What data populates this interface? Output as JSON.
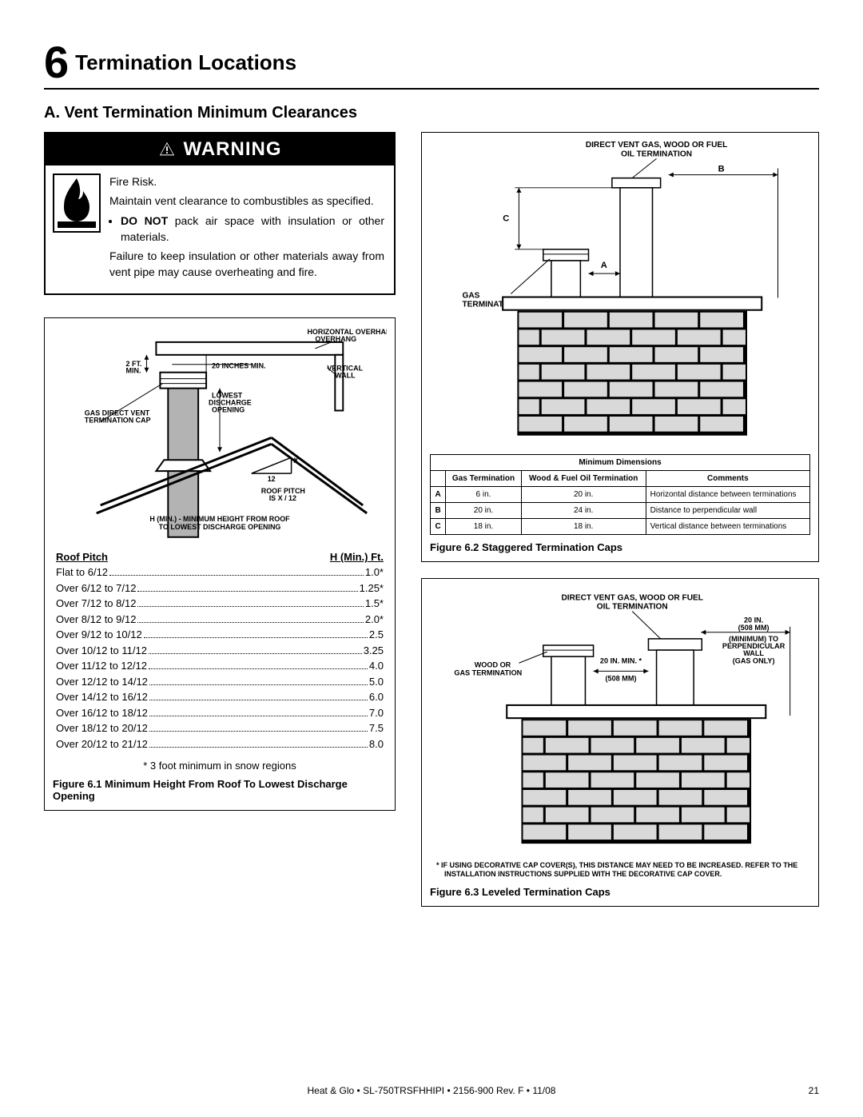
{
  "section": {
    "number": "6",
    "title": "Termination Locations"
  },
  "subheading": "A.  Vent Termination Minimum Clearances",
  "warning": {
    "banner": "WARNING",
    "line1": "Fire Risk.",
    "line2": "Maintain vent clearance to combustibles as specified.",
    "bullet1_prefix": "DO NOT",
    "bullet1_rest": " pack air space with insulation or other materials.",
    "line3": "Failure to keep insulation or other materials away from vent pipe may cause overheating and fire."
  },
  "fig61": {
    "labels": {
      "horiz": "HORIZONTAL OVERHANG",
      "twoFt": "2 FT. MIN.",
      "twentyIn": "20 INCHES MIN.",
      "vertWall": "VERTICAL WALL",
      "lowest": "LOWEST DISCHARGE OPENING",
      "capLabel": "GAS DIRECT VENT TERMINATION CAP",
      "x": "X",
      "twelve": "12",
      "pitch": "ROOF PITCH IS  X / 12",
      "hmin": "H (MIN.) - MINIMUM HEIGHT FROM ROOF TO LOWEST DISCHARGE OPENING"
    },
    "tableHead": {
      "col1": "Roof Pitch",
      "col2": "H (Min.) Ft."
    },
    "rows": [
      {
        "pitch": "Flat to 6/12",
        "h": "1.0*"
      },
      {
        "pitch": "Over 6/12 to 7/12",
        "h": "1.25*"
      },
      {
        "pitch": "Over 7/12 to 8/12",
        "h": "1.5*"
      },
      {
        "pitch": "Over 8/12 to 9/12",
        "h": "2.0*"
      },
      {
        "pitch": "Over 9/12 to 10/12",
        "h": "2.5"
      },
      {
        "pitch": "Over 10/12 to 11/12",
        "h": "3.25"
      },
      {
        "pitch": "Over 11/12 to 12/12",
        "h": "4.0"
      },
      {
        "pitch": "Over 12/12 to 14/12",
        "h": "5.0"
      },
      {
        "pitch": "Over 14/12 to 16/12",
        "h": "6.0"
      },
      {
        "pitch": "Over 16/12 to 18/12",
        "h": "7.0"
      },
      {
        "pitch": "Over 18/12 to 20/12",
        "h": "7.5"
      },
      {
        "pitch": "Over 20/12 to 21/12",
        "h": "8.0"
      }
    ],
    "note": "* 3 foot minimum in snow regions",
    "caption": "Figure 6.1  Minimum Height From Roof To Lowest Discharge Opening"
  },
  "fig62": {
    "topTitle1": "DIRECT VENT GAS, WOOD OR FUEL",
    "topTitle2": "OIL TERMINATION",
    "labelGas": "GAS TERMINATION",
    "labels": {
      "A": "A",
      "B": "B",
      "C": "C"
    },
    "tableTitle": "Minimum Dimensions",
    "head": {
      "c1": "",
      "c2": "Gas Termination",
      "c3": "Wood & Fuel Oil Termination",
      "c4": "Comments"
    },
    "rows": [
      {
        "k": "A",
        "g": "6 in.",
        "w": "20 in.",
        "c": "Horizontal distance between terminations"
      },
      {
        "k": "B",
        "g": "20 in.",
        "w": "24 in.",
        "c": "Distance to perpendicular wall"
      },
      {
        "k": "C",
        "g": "18 in.",
        "w": "18 in.",
        "c": "Vertical distance between terminations"
      }
    ],
    "caption": "Figure 6.2  Staggered Termination Caps"
  },
  "fig63": {
    "topTitle1": "DIRECT VENT GAS, WOOD OR FUEL",
    "topTitle2": "OIL TERMINATION",
    "rightLabel1": "20 IN.",
    "rightLabel2": "(508 MM)",
    "rightLabel3": "(MINIMUM) TO",
    "rightLabel4": "PERPENDICULAR",
    "rightLabel5": "WALL",
    "rightLabel6": "(GAS ONLY)",
    "centerLabel1": "20 IN. MIN. *",
    "centerLabel2": "(508 MM)",
    "leftLabel1": "WOOD OR",
    "leftLabel2": "GAS TERMINATION",
    "footnote": "*   IF USING DECORATIVE CAP COVER(S), THIS DISTANCE MAY NEED TO BE INCREASED. REFER TO THE INSTALLATION INSTRUCTIONS SUPPLIED WITH THE DECORATIVE CAP COVER.",
    "caption": "Figure 6.3  Leveled Termination Caps"
  },
  "footer": {
    "center": "Heat & Glo  •  SL-750TRSFHHIPI  •  2156-900 Rev. F  •  11/08",
    "page": "21"
  },
  "colors": {
    "brick": "#d9d9d9",
    "pipe": "#b3b3b3"
  }
}
